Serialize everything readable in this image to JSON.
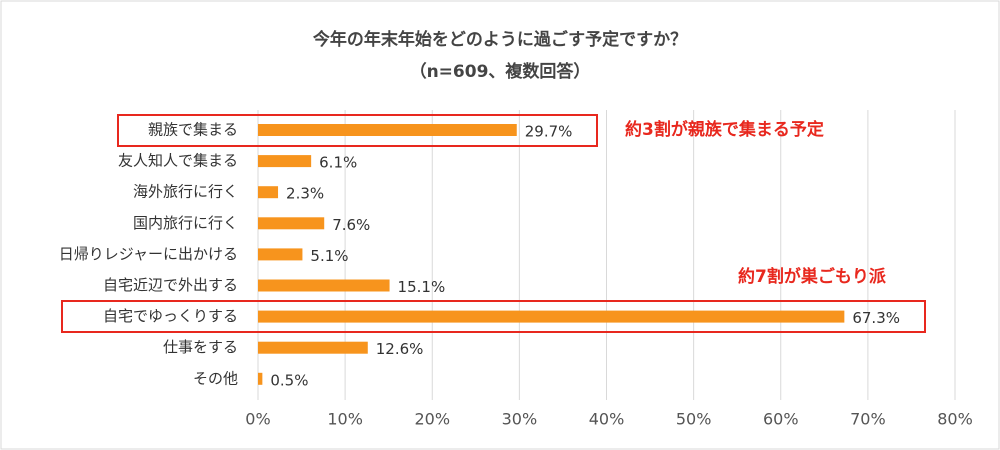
{
  "chart_data": {
    "type": "bar",
    "orientation": "horizontal",
    "title": "今年の年末年始をどのように過ごす予定ですか？",
    "subtitle": "（n=609、複数回答）",
    "categories": [
      "親族で集まる",
      "友人知人で集まる",
      "海外旅行に行く",
      "国内旅行に行く",
      "日帰りレジャーに出かける",
      "自宅近辺で外出する",
      "自宅でゆっくりする",
      "仕事をする",
      "その他"
    ],
    "values": [
      29.7,
      6.1,
      2.3,
      7.6,
      5.1,
      15.1,
      67.3,
      12.6,
      0.5
    ],
    "value_labels": [
      "29.7%",
      "6.1%",
      "2.3%",
      "7.6%",
      "5.1%",
      "15.1%",
      "67.3%",
      "12.6%",
      "0.5%"
    ],
    "color": "#f7941d",
    "xlim": [
      0,
      80
    ],
    "xticks": [
      {
        "value": 0,
        "label": "0%"
      },
      {
        "value": 10,
        "label": "10%"
      },
      {
        "value": 20,
        "label": "20%"
      },
      {
        "value": 30,
        "label": "30%"
      },
      {
        "value": 40,
        "label": "40%"
      },
      {
        "value": 50,
        "label": "50%"
      },
      {
        "value": 60,
        "label": "60%"
      },
      {
        "value": 70,
        "label": "70%"
      },
      {
        "value": 80,
        "label": "80%"
      }
    ],
    "grid": true,
    "annotations": [
      "約3割が親族で集まる予定",
      "約7割が巣ごもり派"
    ]
  }
}
